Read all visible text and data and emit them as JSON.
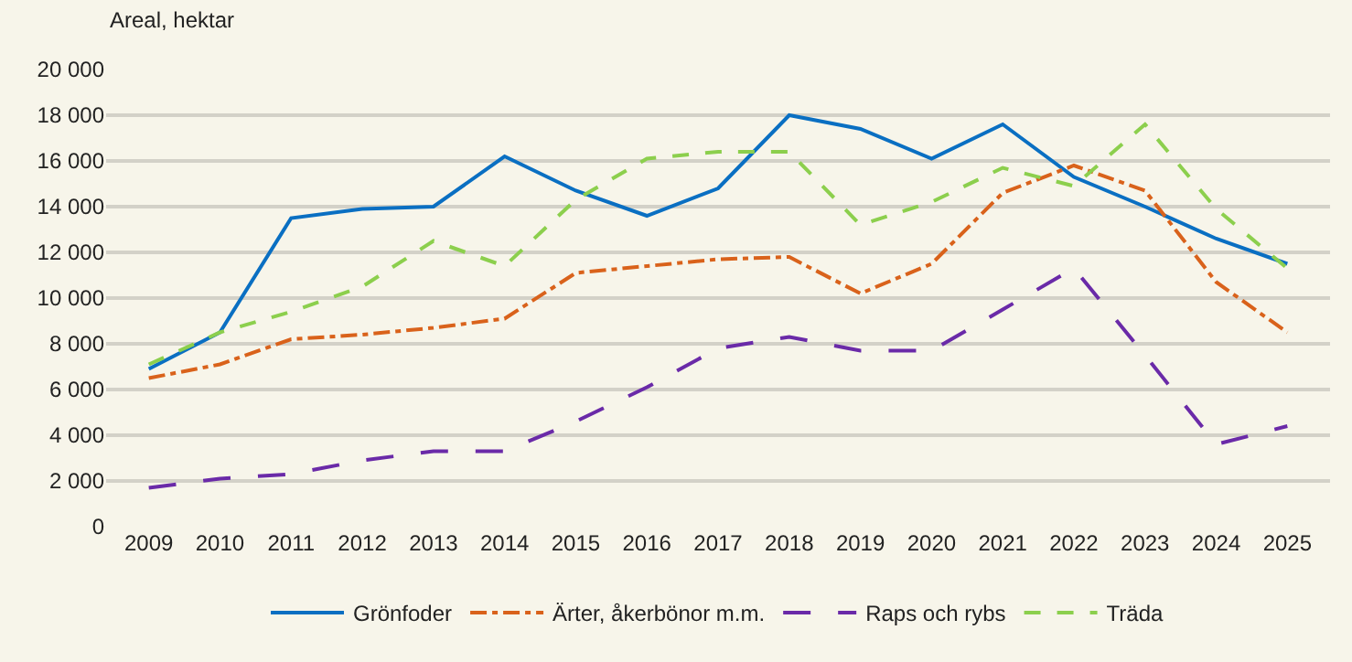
{
  "chart_data": {
    "type": "line",
    "ylabel": "Areal, hektar",
    "categories": [
      "2009",
      "2010",
      "2011",
      "2012",
      "2013",
      "2014",
      "2015",
      "2016",
      "2017",
      "2018",
      "2019",
      "2020",
      "2021",
      "2022",
      "2023",
      "2024",
      "2025"
    ],
    "series": [
      {
        "name": "Grönfoder",
        "color": "#0a6fc2",
        "line_style": "solid",
        "values": [
          6900,
          8500,
          13500,
          13900,
          14000,
          16200,
          14700,
          13600,
          14800,
          18000,
          17400,
          16100,
          17600,
          15300,
          14000,
          12600,
          11500
        ]
      },
      {
        "name": "Ärter, åkerbönor m.m.",
        "color": "#d9621b",
        "line_style": "dashdot",
        "values": [
          6500,
          7100,
          8200,
          8400,
          8700,
          9100,
          11100,
          11400,
          11700,
          11800,
          10200,
          11500,
          14600,
          15800,
          14700,
          10700,
          8500
        ]
      },
      {
        "name": "Raps och rybs",
        "color": "#6a2aa8",
        "line_style": "longdash",
        "values": [
          1700,
          2100,
          2300,
          2900,
          3300,
          3300,
          4600,
          6100,
          7800,
          8300,
          7700,
          7700,
          9500,
          11300,
          7500,
          3600,
          4400
        ]
      },
      {
        "name": "Träda",
        "color": "#8ccf4d",
        "line_style": "dashed",
        "values": [
          7100,
          8500,
          9400,
          10500,
          12500,
          11400,
          14300,
          16100,
          16400,
          16400,
          13200,
          14200,
          15700,
          14900,
          17600,
          13900,
          11300
        ]
      }
    ],
    "ylim": [
      0,
      20000
    ],
    "yticks": [
      0,
      {
        "value": 2000,
        "label": "2 000"
      },
      {
        "value": 4000,
        "label": "4 000"
      },
      {
        "value": 6000,
        "label": "6 000"
      },
      {
        "value": 8000,
        "label": "8 000"
      },
      {
        "value": 10000,
        "label": "10 000"
      },
      {
        "value": 12000,
        "label": "12 000"
      },
      {
        "value": 14000,
        "label": "14 000"
      },
      {
        "value": 16000,
        "label": "16 000"
      },
      {
        "value": 18000,
        "label": "18 000"
      },
      {
        "value": 20000,
        "label": "20 000"
      }
    ],
    "grid": "y",
    "legend": "bottom",
    "marker": "none"
  }
}
